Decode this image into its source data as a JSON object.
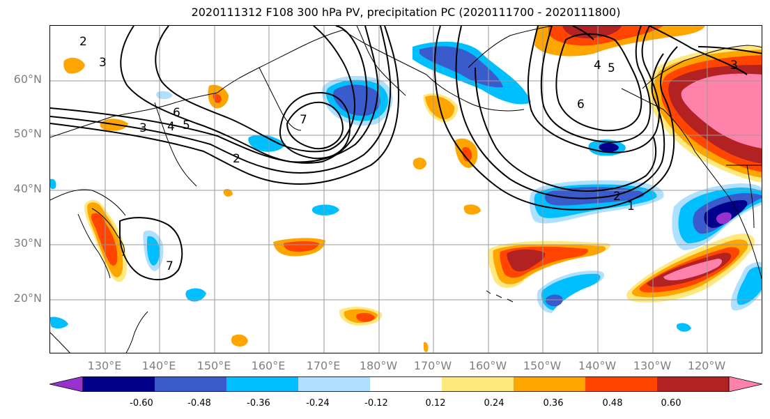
{
  "title": "2020111312 F108 300 hPa PV, precipitation PC (2020111700 - 2020111800)",
  "lat_labels": [
    "60°N",
    "50°N",
    "40°N",
    "30°N",
    "20°N"
  ],
  "lon_labels": [
    "130°E",
    "140°E",
    "150°E",
    "160°E",
    "170°E",
    "180°W",
    "170°W",
    "160°W",
    "150°W",
    "140°W",
    "130°W",
    "120°W"
  ],
  "colorbar": {
    "ticks": [
      "-0.60",
      "-0.48",
      "-0.36",
      "-0.24",
      "-0.12",
      "0.12",
      "0.24",
      "0.36",
      "0.48",
      "0.60"
    ],
    "colors": [
      "#9932CC",
      "#00008B",
      "#3A5BCB",
      "#00BFFF",
      "#B0E0FF",
      "#FFFFFF",
      "#FFE97F",
      "#FFA500",
      "#FF4500",
      "#B22222",
      "#FF82AB"
    ]
  },
  "contour_labels": [
    "2",
    "3",
    "6",
    "5",
    "4",
    "3",
    "2",
    "7",
    "7",
    "6",
    "5",
    "4",
    "3",
    "2",
    "1"
  ]
}
